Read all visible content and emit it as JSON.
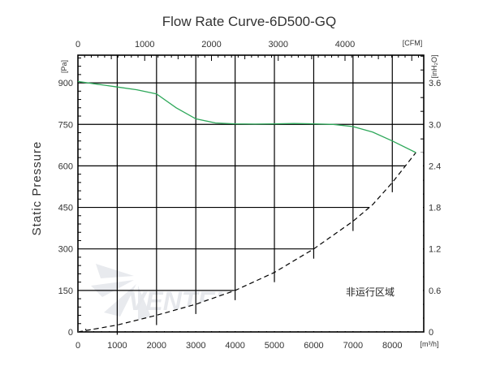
{
  "chart_data": {
    "type": "line",
    "title": "Flow Rate Curve-6D500-GQ",
    "ylabel": "Static  Pressure",
    "x_unit_bottom": "[m³/h]",
    "x_unit_top": "[CFM]",
    "y_unit_left": "[Pa]",
    "y_unit_right": "[inH₂O]",
    "xlim": [
      0,
      8800
    ],
    "ylim": [
      0,
      1000
    ],
    "x_ticks_bottom": [
      "0",
      "1000",
      "2000",
      "3000",
      "4000",
      "5000",
      "6000",
      "7000",
      "8000"
    ],
    "x_ticks_top": [
      "0",
      "1000",
      "2000",
      "3000",
      "4000"
    ],
    "y_ticks_left": [
      "0",
      "150",
      "300",
      "450",
      "600",
      "750",
      "900"
    ],
    "y_ticks_right": [
      "0",
      "0.6",
      "1.2",
      "1.8",
      "2.4",
      "3.0",
      "3.6"
    ],
    "grid": true,
    "series": [
      {
        "color": "#2ea85a",
        "x": [
          0,
          500,
          1000,
          1500,
          2000,
          2500,
          3000,
          3500,
          4000,
          4500,
          5000,
          5500,
          6000,
          6500,
          7000,
          7500,
          8000,
          8600
        ],
        "y": [
          905,
          895,
          885,
          875,
          860,
          810,
          770,
          755,
          752,
          751,
          752,
          753,
          752,
          750,
          742,
          722,
          690,
          648
        ]
      }
    ],
    "non_operating_boundary": {
      "x": [
        0,
        1000,
        2000,
        3000,
        4000,
        5000,
        6000,
        7000,
        7500,
        8000,
        8600
      ],
      "y": [
        0,
        25,
        60,
        100,
        150,
        215,
        300,
        400,
        460,
        540,
        648
      ]
    },
    "annotation": "非运行区域",
    "watermark": "VENTEL"
  }
}
